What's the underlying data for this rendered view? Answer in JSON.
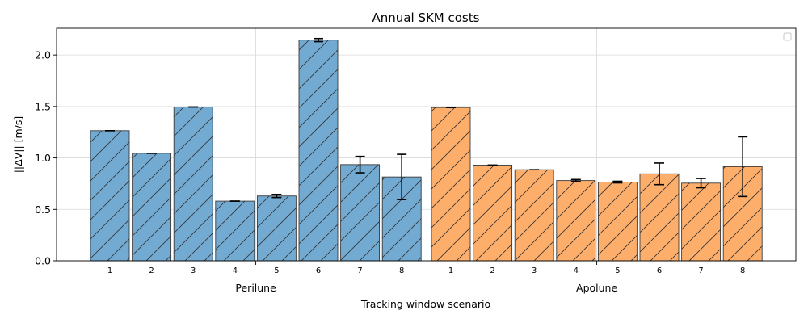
{
  "chart_data": {
    "type": "bar",
    "title": "Annual SKM costs",
    "xlabel": "Tracking window scenario",
    "ylabel": "||ΔV|| [m/s]",
    "ylim": [
      0,
      2.26
    ],
    "yticks": [
      "0.0",
      "0.5",
      "1.0",
      "1.5",
      "2.0"
    ],
    "categories": [
      "1",
      "2",
      "3",
      "4",
      "5",
      "6",
      "7",
      "8"
    ],
    "grid": true,
    "legend": "top-right",
    "hatch": "diagonal",
    "series": [
      {
        "name": "Perilune",
        "color": "#73aad2",
        "values": [
          1.265,
          1.045,
          1.495,
          0.58,
          0.63,
          2.145,
          0.935,
          0.815
        ],
        "error": [
          0.0,
          0.0,
          0.0,
          0.0,
          0.015,
          0.015,
          0.08,
          0.22
        ]
      },
      {
        "name": "Apolune",
        "color": "#fdae6b",
        "values": [
          1.49,
          0.93,
          0.885,
          0.78,
          0.765,
          0.845,
          0.755,
          0.915
        ],
        "error": [
          0.0,
          0.0,
          0.0,
          0.01,
          0.008,
          0.105,
          0.045,
          0.29
        ]
      }
    ]
  }
}
